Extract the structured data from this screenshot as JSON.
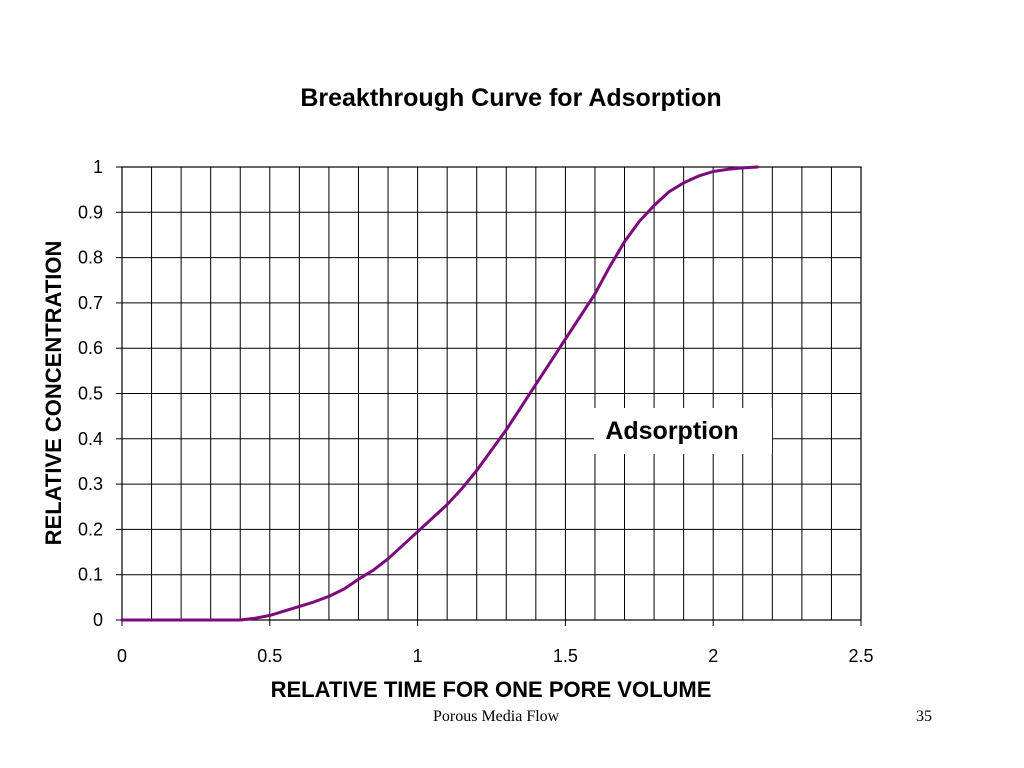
{
  "chart_data": {
    "type": "line",
    "title": "Breakthrough Curve for Adsorption",
    "xlabel": "RELATIVE TIME FOR ONE PORE VOLUME",
    "ylabel": "RELATIVE CONCENTRATION",
    "xlim": [
      0,
      2.5
    ],
    "ylim": [
      0,
      1
    ],
    "x_ticks": [
      "0",
      "0.5",
      "1",
      "1.5",
      "2",
      "2.5"
    ],
    "y_ticks": [
      "0",
      "0.1",
      "0.2",
      "0.3",
      "0.4",
      "0.5",
      "0.6",
      "0.7",
      "0.8",
      "0.9",
      "1"
    ],
    "grid": true,
    "series": [
      {
        "name": "Adsorption",
        "color": "#7B0A7B",
        "x": [
          0,
          0.1,
          0.2,
          0.3,
          0.35,
          0.4,
          0.45,
          0.5,
          0.55,
          0.6,
          0.65,
          0.7,
          0.75,
          0.8,
          0.85,
          0.9,
          0.95,
          1.0,
          1.05,
          1.1,
          1.15,
          1.2,
          1.25,
          1.3,
          1.35,
          1.4,
          1.45,
          1.5,
          1.55,
          1.6,
          1.65,
          1.7,
          1.75,
          1.8,
          1.85,
          1.9,
          1.95,
          2.0,
          2.05,
          2.1,
          2.15
        ],
        "y": [
          0,
          0,
          0,
          0,
          0,
          0,
          0.004,
          0.01,
          0.02,
          0.03,
          0.04,
          0.052,
          0.068,
          0.09,
          0.11,
          0.135,
          0.165,
          0.195,
          0.225,
          0.255,
          0.29,
          0.33,
          0.375,
          0.42,
          0.47,
          0.52,
          0.57,
          0.62,
          0.67,
          0.72,
          0.78,
          0.835,
          0.88,
          0.915,
          0.945,
          0.965,
          0.98,
          0.99,
          0.995,
          0.998,
          1.0
        ]
      }
    ]
  },
  "footer": {
    "left": "Porous Media Flow",
    "right": "35"
  }
}
